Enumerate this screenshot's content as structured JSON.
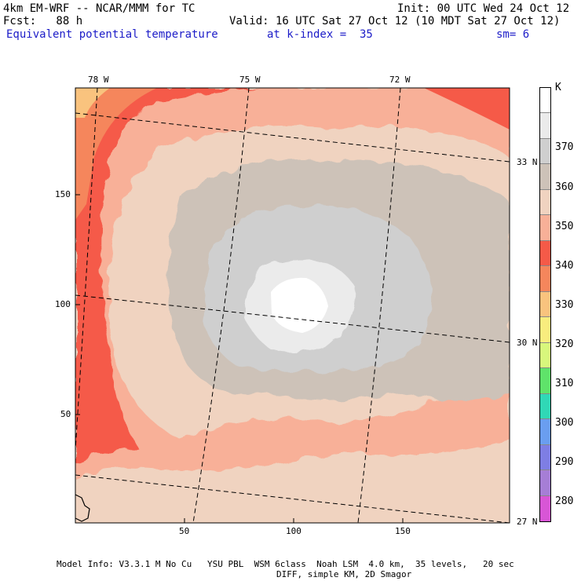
{
  "header": {
    "model_title": "4km EM-WRF -- NCAR/MMM for TC",
    "init": "Init: 00 UTC Wed 24 Oct 12",
    "forecast": "Fcst:   88 h",
    "valid": "Valid: 16 UTC Sat 27 Oct 12 (10 MDT Sat 27 Oct 12)",
    "field_name": "Equivalent potential temperature",
    "level": "at k-index =  35",
    "smoothing": "sm= 6"
  },
  "map": {
    "lon_labels": [
      "78 W",
      "75 W",
      "72 W"
    ],
    "lat_labels": [
      "33 N",
      "30 N",
      "27 N"
    ],
    "y_ticks": [
      "150",
      "100",
      "50"
    ],
    "x_ticks": [
      "50",
      "100",
      "150"
    ]
  },
  "colorbar": {
    "unit": "K",
    "labels": [
      "370",
      "360",
      "350",
      "340",
      "330",
      "320",
      "310",
      "300",
      "290",
      "280"
    ],
    "colors": [
      "#ffffff",
      "#ebebeb",
      "#cfcfcf",
      "#cdc2b8",
      "#f0d3c0",
      "#f8b098",
      "#f55a48",
      "#f5865c",
      "#f9c37e",
      "#f9ed7e",
      "#d8f77c",
      "#5fe36a",
      "#30d8b6",
      "#6a9ef0",
      "#7e7ee4",
      "#a67ed6",
      "#d856d6"
    ]
  },
  "footer": {
    "line1": "Model Info: V3.3.1 M No Cu   YSU PBL  WSM 6class  Noah LSM  4.0 km,  35 levels,   20 sec",
    "line2": "DIFF, simple KM, 2D Smagor"
  }
}
